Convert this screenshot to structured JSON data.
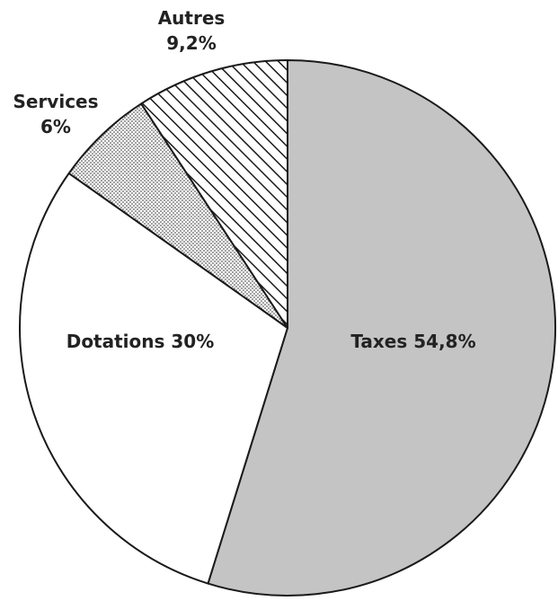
{
  "chart_data": {
    "type": "pie",
    "title": "",
    "legend": "none",
    "slices": [
      {
        "label": "Taxes",
        "value": 54.8,
        "display": "54,8%",
        "fill": "#c4c4c4",
        "pattern": "solid"
      },
      {
        "label": "Dotations",
        "value": 30,
        "display": "30%",
        "fill": "#ffffff",
        "pattern": "solid"
      },
      {
        "label": "Services",
        "value": 6,
        "display": "6%",
        "fill": "#ffffff",
        "pattern": "dots"
      },
      {
        "label": "Autres",
        "value": 9.2,
        "display": "9,2%",
        "fill": "#ffffff",
        "pattern": "diagonal-hatch"
      }
    ]
  }
}
